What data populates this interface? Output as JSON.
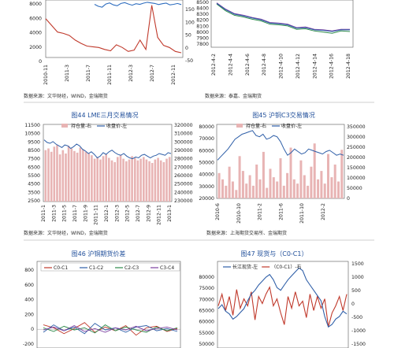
{
  "panels": {
    "p1": {
      "source": "数据来源：文华财经，WIND，金瑞期货",
      "chart_data": {
        "type": "line",
        "x_ticks": [
          "2010-11",
          "2011-3",
          "2011-7",
          "2011-11",
          "2012-3",
          "2012-7",
          "2012-11"
        ],
        "y_left_ticks": [
          "8000",
          "6000",
          "4000",
          "2000",
          "0"
        ],
        "y_right_ticks": [
          "150",
          "100",
          "50",
          "0",
          "-50"
        ],
        "series": [
          {
            "name": "",
            "axis": "left",
            "color": "#c0392b",
            "values": [
              5800,
              4800,
              3800,
              3600,
              3300,
              2600,
              2100,
              1700,
              1600,
              1500,
              1200,
              1000,
              1900,
              1500,
              900,
              1100,
              2600,
              1200,
              7800,
              3000,
              1800,
              1500,
              900,
              700
            ]
          },
          {
            "name": "",
            "axis": "right",
            "color": "#2e6dbf",
            "values": [
              135,
              128,
              125,
              136,
              140,
              133,
              130,
              138,
              141,
              136,
              132,
              137,
              135,
              139,
              142,
              140,
              138,
              134,
              137,
              139,
              133,
              135,
              138,
              134
            ]
          }
        ]
      }
    },
    "p2": {
      "source": "数据来源：泰嘉、金瑞期货",
      "chart_data": {
        "type": "line",
        "x_ticks": [
          "2012-4-2",
          "2012-4-4",
          "2012-4-6",
          "2012-4-8",
          "2012-4-10",
          "2012-4-12",
          "2012-4-14",
          "2012-4-16",
          "2012-4-18"
        ],
        "y_ticks": [
          "8500",
          "8400",
          "8300",
          "8200",
          "8100",
          "8000",
          "7900",
          "7800"
        ],
        "ylim": [
          7750,
          8550
        ],
        "series": [
          {
            "name": "",
            "color": "#7b3fa0",
            "values": [
              8540,
              8430,
              8350,
              8320,
              8280,
              8250,
              8190,
              8180,
              8160,
              8100,
              8110,
              8070,
              8060,
              8040,
              8070,
              8070
            ]
          },
          {
            "name": "",
            "color": "#2d8a4a",
            "values": [
              8520,
              8400,
              8320,
              8290,
              8250,
              8220,
              8160,
              8150,
              8130,
              8070,
              8080,
              8040,
              8020,
              8000,
              8040,
              8030
            ]
          },
          {
            "name": "",
            "color": "#2f5fa8",
            "values": [
              8530,
              8420,
              8340,
              8310,
              8270,
              8240,
              8180,
              8170,
              8150,
              8090,
              8100,
              8060,
              8050,
              8030,
              8060,
              8060
            ]
          }
        ]
      }
    },
    "p3": {
      "title": "图44 LME三月交易情况",
      "source": "数据来源：文华财经，WIND，金瑞期货",
      "chart_data": {
        "type": "bar",
        "legend": [
          "持仓量-右",
          "收盘价-左"
        ],
        "x_ticks": [
          "2011-1",
          "2011-3",
          "2011-5",
          "2011-7",
          "2011-9",
          "2011-11",
          "2012-1",
          "2012-3",
          "2012-5",
          "2012-7",
          "2012-9",
          "2012-11",
          "2013-1"
        ],
        "y_left_ticks": [
          "11500",
          "10500",
          "9500",
          "8500",
          "7500",
          "6500",
          "5500",
          "4500",
          "3500",
          "2500"
        ],
        "y_right_ticks": [
          "320000",
          "310000",
          "300000",
          "290000",
          "280000",
          "270000",
          "260000",
          "250000",
          "240000",
          "230000"
        ],
        "ylim_left": [
          2500,
          11500
        ],
        "ylim_right": [
          230000,
          320000
        ],
        "bars_right": [
          290000,
          292000,
          288000,
          294000,
          296000,
          285000,
          290000,
          286000,
          295000,
          292000,
          289000,
          287000,
          293000,
          291000,
          288000,
          286000,
          284000,
          280000,
          282000,
          279000,
          283000,
          285000,
          281000,
          278000,
          276000,
          282000,
          284000,
          280000,
          277000,
          279000,
          283000,
          281000,
          278000,
          280000,
          282000,
          279000,
          277000,
          275000,
          279000,
          281000,
          278000,
          276000,
          280000,
          282000
        ],
        "line_left": [
          9700,
          9400,
          9300,
          9500,
          9200,
          9000,
          8800,
          9100,
          9000,
          8700,
          8900,
          9200,
          9000,
          8600,
          8400,
          8100,
          8300,
          8000,
          7600,
          7800,
          8200,
          8000,
          8300,
          8500,
          8200,
          8000,
          7900,
          8100,
          7800,
          7600,
          7500,
          7700,
          7600,
          7900,
          8000,
          7800,
          7600,
          7800,
          7900,
          8100,
          8000,
          7900,
          8200,
          8100
        ]
      }
    },
    "p4": {
      "title": "图45 沪铜C3交易情况",
      "source": "数据来源：上海期货交易所、金瑞期货",
      "chart_data": {
        "type": "bar",
        "legend": [
          "持仓量-右",
          "收盘价-左"
        ],
        "x_ticks": [
          "2010-6",
          "2010-10",
          "2011-2",
          "2011-6",
          "2011-10",
          "2012-2"
        ],
        "y_left_ticks": [
          "80000",
          "70000",
          "60000",
          "50000",
          "40000",
          "30000",
          "20000"
        ],
        "y_right_ticks": [
          "350000",
          "300000",
          "250000",
          "200000",
          "150000",
          "100000",
          "50000",
          "0"
        ],
        "ylim_left": [
          20000,
          80000
        ],
        "ylim_right": [
          0,
          350000
        ],
        "bars_right": [
          120000,
          90000,
          60000,
          150000,
          80000,
          40000,
          200000,
          130000,
          70000,
          110000,
          60000,
          160000,
          90000,
          220000,
          50000,
          140000,
          100000,
          80000,
          190000,
          60000,
          120000,
          240000,
          90000,
          70000,
          180000,
          110000,
          60000,
          150000,
          260000,
          90000,
          130000,
          70000,
          210000,
          100000,
          160000,
          80000,
          230000
        ],
        "line_left": [
          51000,
          54000,
          57000,
          60000,
          64000,
          68000,
          70000,
          72000,
          73000,
          74000,
          75000,
          71000,
          70000,
          72000,
          68000,
          69000,
          71000,
          70000,
          66000,
          60000,
          55000,
          57000,
          60000,
          58000,
          56000,
          57000,
          60000,
          59000,
          58000,
          57000,
          56000,
          58000,
          59000,
          57000,
          55000,
          56000,
          55000
        ]
      }
    },
    "p5": {
      "title": "图46 沪铜期货价差",
      "chart_data": {
        "type": "line",
        "legend": [
          "C0-C1",
          "C1-C2",
          "C2-C3",
          "C3-C4"
        ],
        "y_ticks": [
          "800",
          "600",
          "400",
          "200",
          "0",
          "-200"
        ],
        "ylim": [
          -200,
          800
        ],
        "series": [
          {
            "name": "C0-C1",
            "color": "#c0392b",
            "values": [
              60,
              20,
              -60,
              10,
              90,
              -40,
              30,
              -20,
              50,
              -80,
              20,
              40,
              -30,
              10
            ]
          },
          {
            "name": "C1-C2",
            "color": "#2f5fa8",
            "values": [
              -40,
              60,
              -20,
              30,
              -60,
              80,
              -10,
              20,
              -40,
              30,
              50,
              -20,
              10,
              -30
            ]
          },
          {
            "name": "C2-C3",
            "color": "#2d8a4a",
            "values": [
              20,
              -30,
              40,
              -10,
              20,
              -50,
              60,
              -20,
              30,
              -10,
              -40,
              30,
              -20,
              20
            ]
          },
          {
            "name": "C3-C4",
            "color": "#7b3fa0",
            "values": [
              -10,
              30,
              -20,
              50,
              -30,
              10,
              -40,
              20,
              -10,
              40,
              -20,
              10,
              30,
              -10
            ]
          }
        ]
      }
    },
    "p6": {
      "title": "图47 现货与（C0-C1）",
      "chart_data": {
        "type": "line",
        "legend": [
          "长江现货-左",
          "（C0-C1）-右"
        ],
        "y_left_ticks": [
          "80000",
          "75000",
          "70000",
          "65000",
          "60000",
          "55000",
          "50000"
        ],
        "y_right_ticks": [
          "1500",
          "1000",
          "500",
          "0",
          "-500",
          "-1000",
          "-1500"
        ],
        "ylim_left": [
          48000,
          81000
        ],
        "ylim_right": [
          -2000,
          1700
        ],
        "series": [
          {
            "name": "长江现货-左",
            "axis": "left",
            "color": "#2f5fa8",
            "values": [
              63000,
              64500,
              62000,
              61000,
              59000,
              60000,
              61500,
              63000,
              66000,
              68500,
              70000,
              72000,
              73500,
              75000,
              76000,
              74000,
              71000,
              70000,
              72000,
              74000,
              75500,
              77000,
              78500,
              77500,
              74000,
              72000,
              70000,
              68000,
              66000,
              60000,
              56000,
              57000,
              59000,
              60000,
              62000,
              61000
            ]
          },
          {
            "name": "（C0-C1）-右",
            "axis": "right",
            "color": "#c0392b",
            "values": [
              -200,
              300,
              -400,
              200,
              -600,
              500,
              -300,
              100,
              -200,
              400,
              -800,
              200,
              -100,
              300,
              600,
              -200,
              100,
              -500,
              -1000,
              200,
              -300,
              400,
              -200,
              0,
              -700,
              300,
              -400,
              200,
              -300,
              100,
              -1100,
              -500,
              -200,
              200,
              -400,
              300
            ]
          }
        ]
      }
    }
  }
}
